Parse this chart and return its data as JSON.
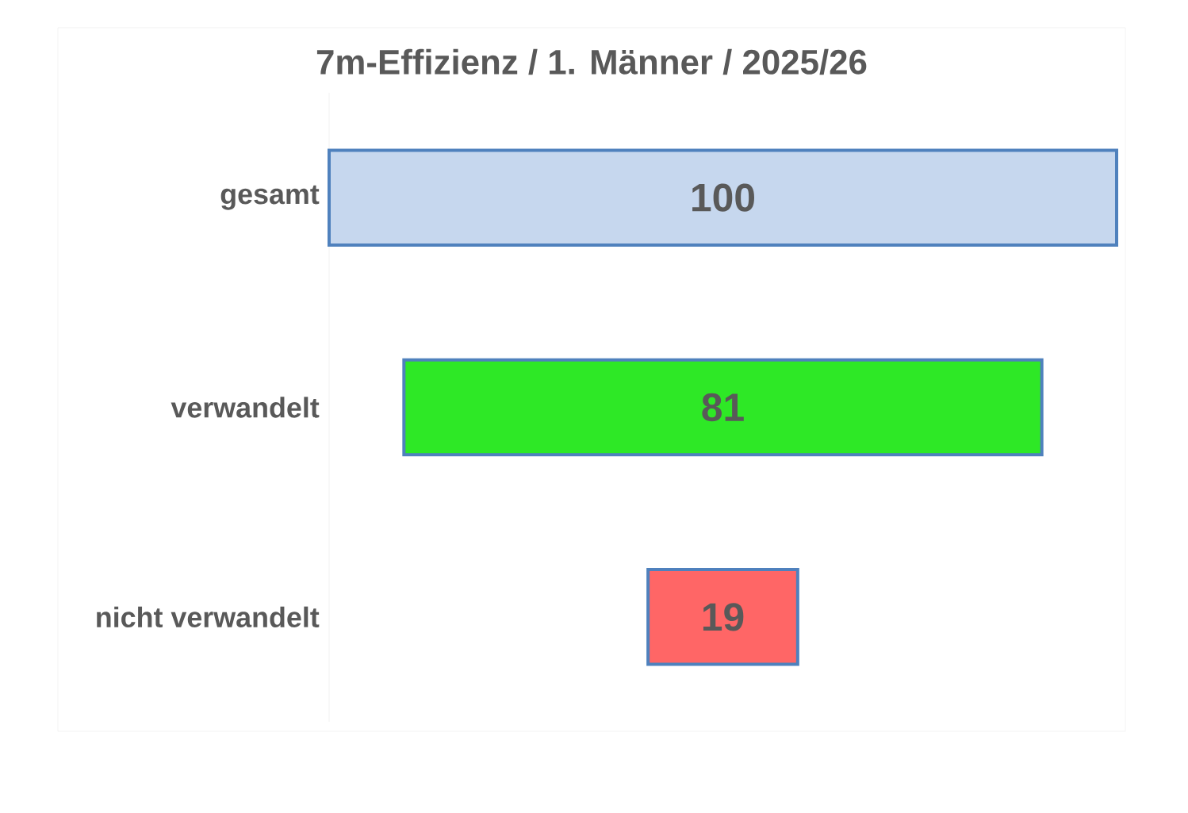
{
  "chart_data": {
    "type": "other",
    "title": "7m-Effizienz / 1. Männer / 2025/26",
    "categories": [
      "gesamt",
      "verwandelt",
      "nicht verwandelt"
    ],
    "values": [
      100,
      81,
      19
    ],
    "colors": [
      "#c6d7ee",
      "#2ee826",
      "#ff6666"
    ],
    "data_labels": true
  }
}
